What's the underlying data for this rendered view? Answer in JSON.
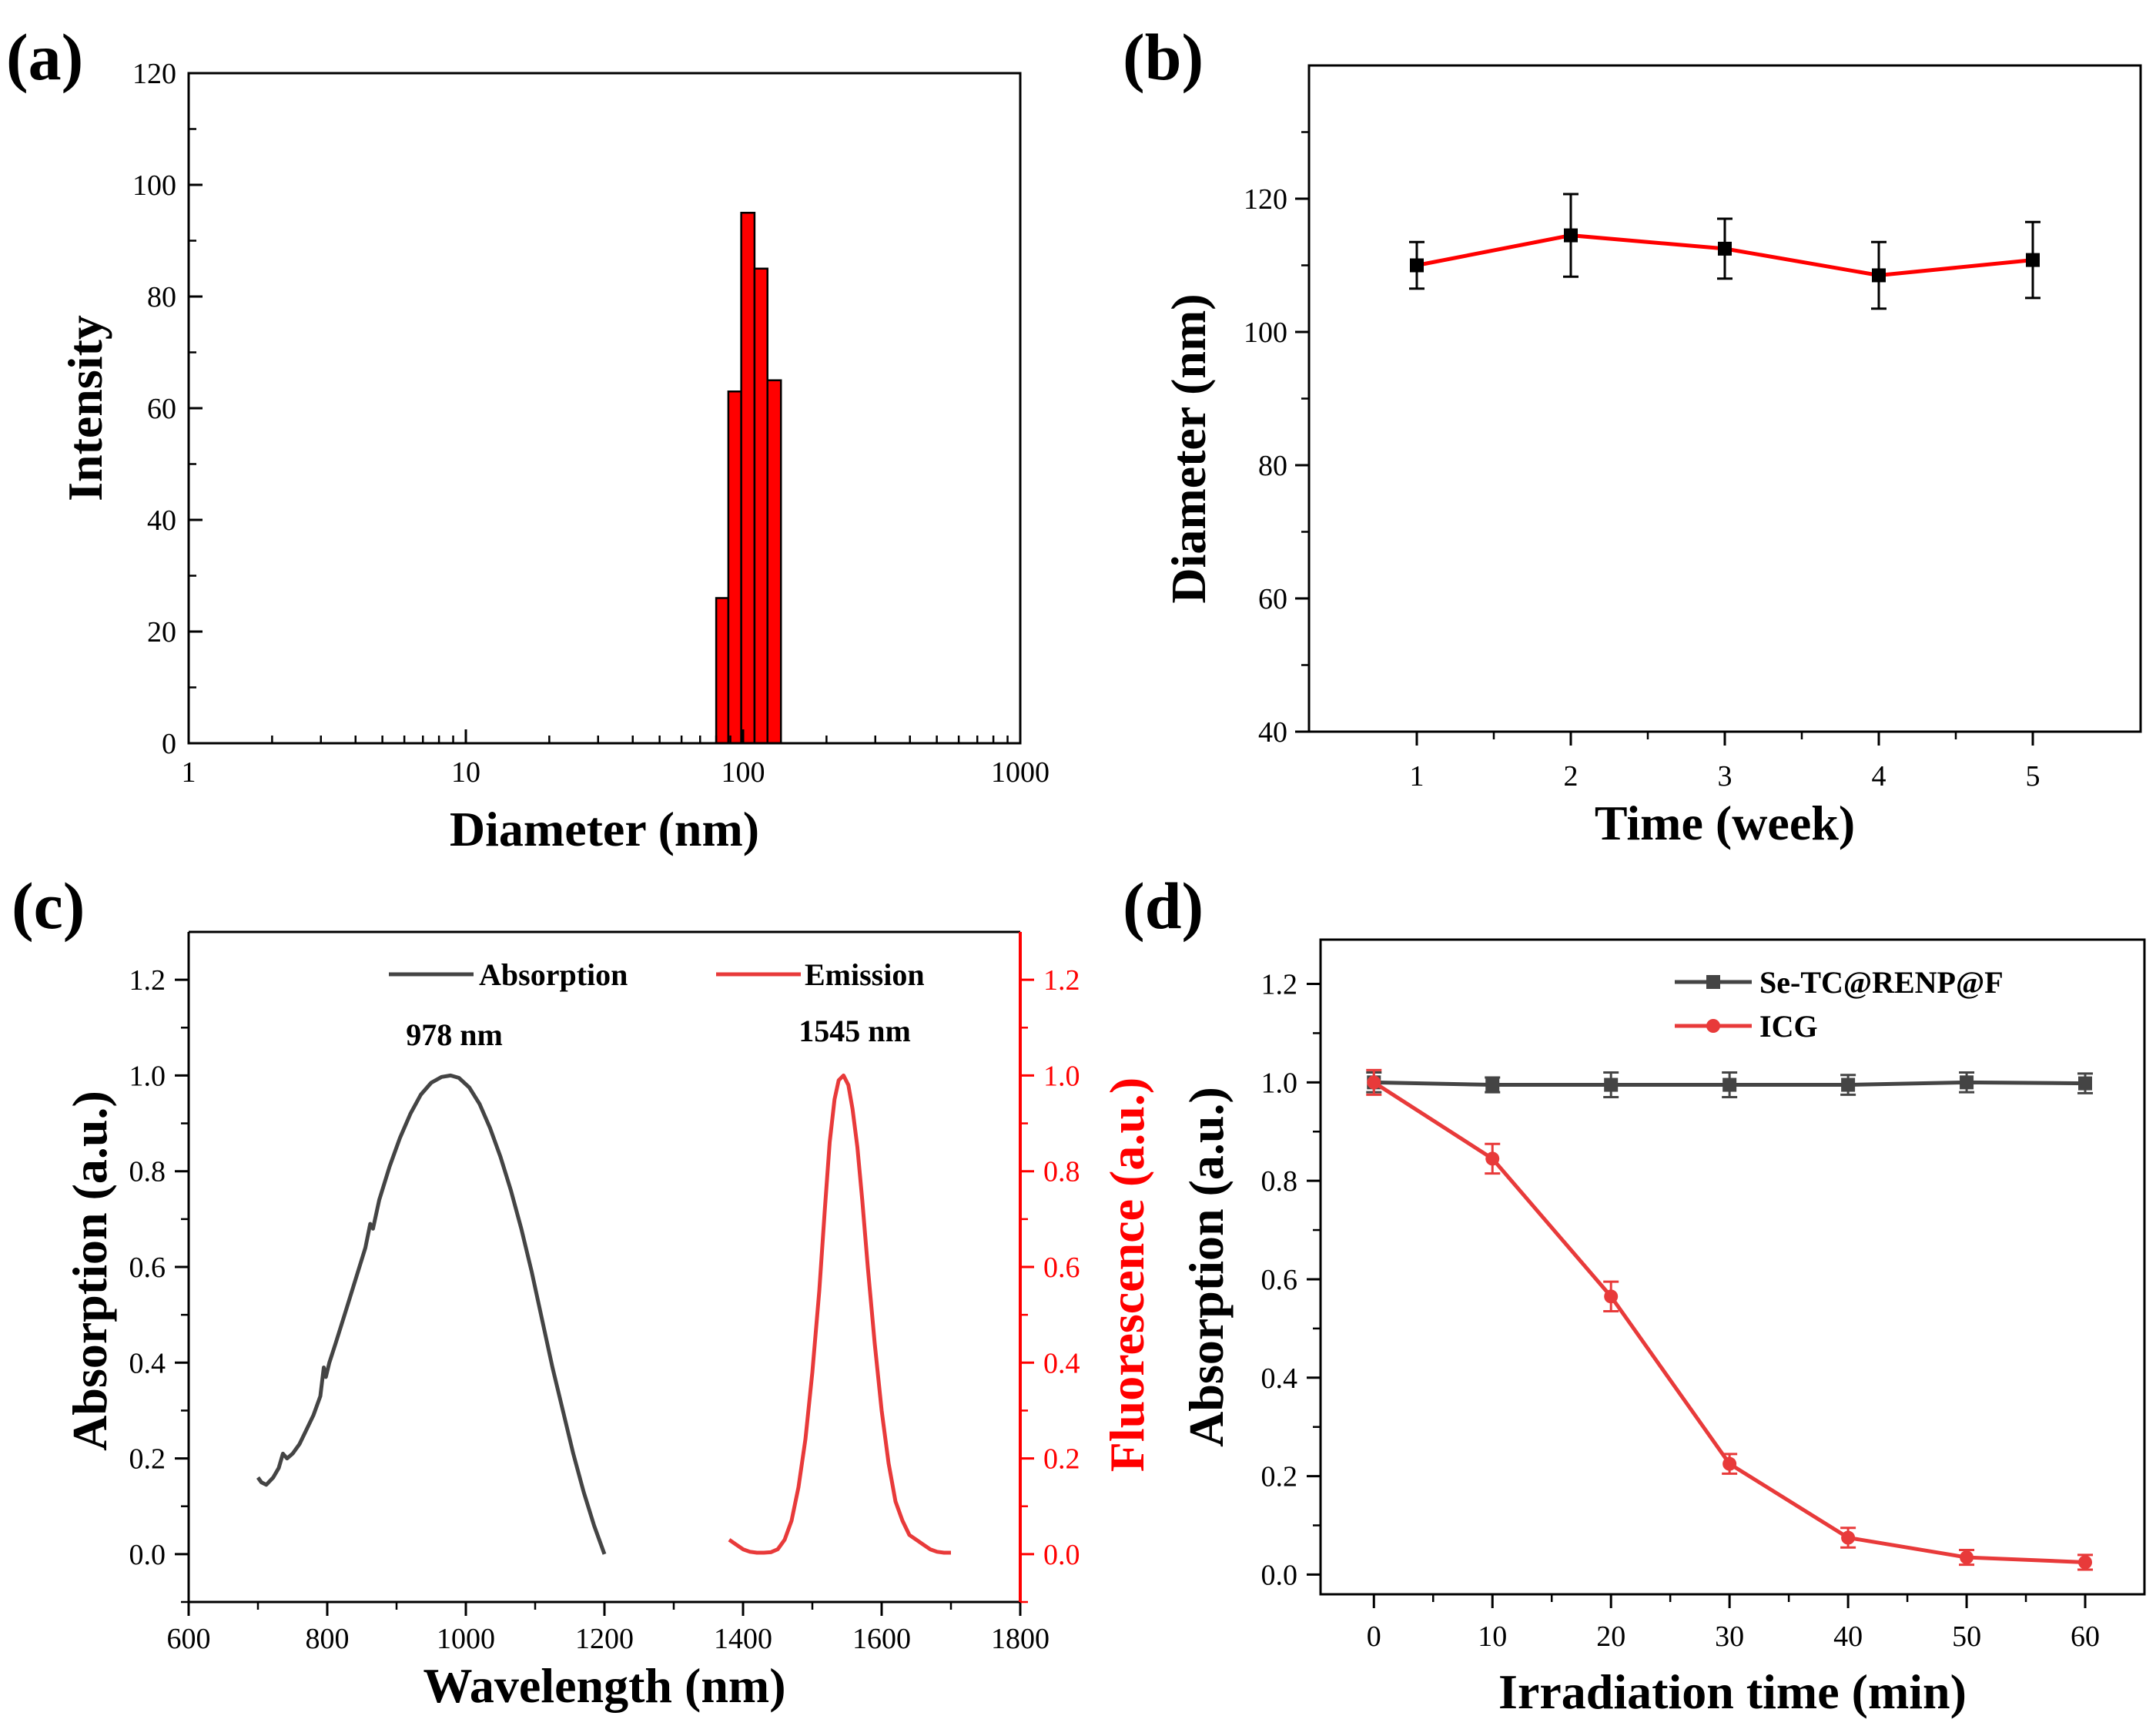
{
  "colors": {
    "black": "#000000",
    "red": "#ff0000",
    "grey": "#444444",
    "red_line": "#e83a3a"
  },
  "panels": {
    "a": {
      "label": "(a)"
    },
    "b": {
      "label": "(b)"
    },
    "c": {
      "label": "(c)"
    },
    "d": {
      "label": "(d)"
    }
  },
  "chart_data": [
    {
      "id": "a",
      "type": "bar",
      "xscale": "log",
      "xlabel": "Diameter (nm)",
      "ylabel": "Intensity",
      "xlim": [
        1,
        1000
      ],
      "ylim": [
        0,
        120
      ],
      "xticks": [
        1,
        10,
        100,
        1000
      ],
      "yticks": [
        0,
        20,
        40,
        60,
        80,
        100,
        120
      ],
      "bar_color": "#ff0000",
      "bins": [
        {
          "left": 80.0,
          "right": 88.5,
          "value": 26
        },
        {
          "left": 88.5,
          "right": 98.5,
          "value": 63
        },
        {
          "left": 98.5,
          "right": 110.0,
          "value": 95
        },
        {
          "left": 110.0,
          "right": 122.5,
          "value": 85
        },
        {
          "left": 122.5,
          "right": 137.0,
          "value": 65
        }
      ]
    },
    {
      "id": "b",
      "type": "line",
      "xlabel": "Time (week)",
      "ylabel": "Diameter (nm)",
      "xlim": [
        0.3,
        5.7
      ],
      "ylim": [
        40,
        140
      ],
      "xticks": [
        1,
        2,
        3,
        4,
        5
      ],
      "yticks": [
        40,
        60,
        80,
        100,
        120
      ],
      "series": [
        {
          "name": "Diameter",
          "line_color": "#ff0000",
          "marker_color": "#000000",
          "x": [
            1,
            2,
            3,
            4,
            5
          ],
          "y": [
            110,
            114.5,
            112.5,
            108.5,
            110.8
          ],
          "err": [
            3.5,
            6.2,
            4.5,
            5.0,
            5.7
          ]
        }
      ]
    },
    {
      "id": "c",
      "type": "line",
      "xlabel": "Wavelength (nm)",
      "ylabel": "Absorption (a.u.)",
      "ylabel_right": "Fluorescence (a.u.)",
      "xlim": [
        600,
        1800
      ],
      "ylim": [
        -0.1,
        1.3
      ],
      "xticks": [
        600,
        800,
        1000,
        1200,
        1400,
        1600,
        1800
      ],
      "yticks": [
        0.0,
        0.2,
        0.4,
        0.6,
        0.8,
        1.0,
        1.2
      ],
      "ytick_labels": [
        "0.0",
        "0.2",
        "0.4",
        "0.6",
        "0.8",
        "1.0",
        "1.2"
      ],
      "annotations": [
        {
          "text": "978 nm",
          "x": 978,
          "y": 1.08
        },
        {
          "text": "1545 nm",
          "x": 1545,
          "y": 1.08
        }
      ],
      "series": [
        {
          "name": "Absorption",
          "color": "#444444",
          "x": [
            700,
            705,
            712,
            722,
            730,
            736,
            742,
            750,
            760,
            770,
            780,
            790,
            795,
            798,
            803,
            812,
            825,
            840,
            855,
            862,
            866,
            875,
            890,
            905,
            920,
            935,
            950,
            965,
            978,
            990,
            1005,
            1020,
            1035,
            1050,
            1065,
            1080,
            1095,
            1110,
            1125,
            1140,
            1155,
            1170,
            1185,
            1200
          ],
          "y": [
            0.16,
            0.15,
            0.145,
            0.16,
            0.18,
            0.21,
            0.2,
            0.21,
            0.23,
            0.26,
            0.29,
            0.33,
            0.39,
            0.37,
            0.4,
            0.44,
            0.5,
            0.57,
            0.64,
            0.69,
            0.68,
            0.74,
            0.81,
            0.87,
            0.92,
            0.96,
            0.985,
            0.997,
            1.0,
            0.995,
            0.975,
            0.94,
            0.89,
            0.83,
            0.76,
            0.68,
            0.59,
            0.49,
            0.39,
            0.3,
            0.21,
            0.13,
            0.06,
            0.0
          ]
        },
        {
          "name": "Emission",
          "color": "#e83a3a",
          "x": [
            1380,
            1390,
            1400,
            1410,
            1420,
            1430,
            1440,
            1450,
            1460,
            1470,
            1480,
            1490,
            1500,
            1510,
            1518,
            1525,
            1532,
            1538,
            1545,
            1552,
            1558,
            1565,
            1572,
            1580,
            1590,
            1600,
            1610,
            1620,
            1630,
            1640,
            1650,
            1660,
            1670,
            1680,
            1690,
            1700
          ],
          "y": [
            0.03,
            0.02,
            0.01,
            0.005,
            0.003,
            0.003,
            0.004,
            0.01,
            0.03,
            0.07,
            0.14,
            0.24,
            0.38,
            0.55,
            0.72,
            0.86,
            0.95,
            0.99,
            1.0,
            0.98,
            0.93,
            0.85,
            0.74,
            0.6,
            0.44,
            0.3,
            0.19,
            0.11,
            0.07,
            0.04,
            0.03,
            0.02,
            0.01,
            0.005,
            0.003,
            0.003
          ]
        }
      ]
    },
    {
      "id": "d",
      "type": "line",
      "xlabel": "Irradiation time (min)",
      "ylabel": "Absorption (a.u.)",
      "xlim": [
        -4.5,
        65
      ],
      "ylim": [
        -0.04,
        1.29
      ],
      "xticks": [
        0,
        10,
        20,
        30,
        40,
        50,
        60
      ],
      "yticks": [
        0.0,
        0.2,
        0.4,
        0.6,
        0.8,
        1.0,
        1.2
      ],
      "ytick_labels": [
        "0.0",
        "0.2",
        "0.4",
        "0.6",
        "0.8",
        "1.0",
        "1.2"
      ],
      "legend_position": "top-right",
      "series": [
        {
          "name": "Se-TC@RENP@F",
          "color": "#444444",
          "marker": "square",
          "x": [
            0,
            10,
            20,
            30,
            40,
            50,
            60
          ],
          "y": [
            1.0,
            0.995,
            0.995,
            0.995,
            0.995,
            1.0,
            0.998
          ],
          "err": [
            0.02,
            0.015,
            0.025,
            0.025,
            0.02,
            0.02,
            0.02
          ]
        },
        {
          "name": "ICG",
          "color": "#e83a3a",
          "marker": "circle",
          "x": [
            0,
            10,
            20,
            30,
            40,
            50,
            60
          ],
          "y": [
            1.0,
            0.845,
            0.565,
            0.225,
            0.075,
            0.035,
            0.025
          ],
          "err": [
            0.025,
            0.03,
            0.03,
            0.02,
            0.02,
            0.015,
            0.015
          ]
        }
      ]
    }
  ]
}
